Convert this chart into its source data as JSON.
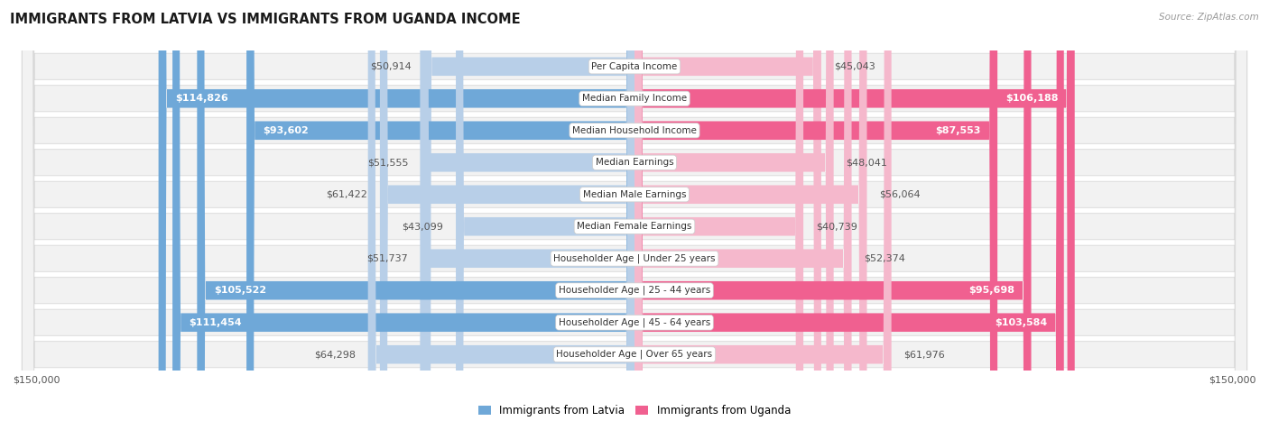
{
  "title": "IMMIGRANTS FROM LATVIA VS IMMIGRANTS FROM UGANDA INCOME",
  "source": "Source: ZipAtlas.com",
  "categories": [
    "Per Capita Income",
    "Median Family Income",
    "Median Household Income",
    "Median Earnings",
    "Median Male Earnings",
    "Median Female Earnings",
    "Householder Age | Under 25 years",
    "Householder Age | 25 - 44 years",
    "Householder Age | 45 - 64 years",
    "Householder Age | Over 65 years"
  ],
  "latvia_values": [
    50914,
    114826,
    93602,
    51555,
    61422,
    43099,
    51737,
    105522,
    111454,
    64298
  ],
  "uganda_values": [
    45043,
    106188,
    87553,
    48041,
    56064,
    40739,
    52374,
    95698,
    103584,
    61976
  ],
  "max_value": 150000,
  "latvia_color_light": "#b8cfe8",
  "latvia_color_dark": "#6fa8d8",
  "uganda_color_light": "#f5b8cc",
  "uganda_color_dark": "#f06090",
  "label_threshold": 75000,
  "background_color": "#ffffff",
  "row_bg_odd": "#f7f7f7",
  "row_bg_even": "#efefef",
  "legend_latvia": "Immigrants from Latvia",
  "legend_uganda": "Immigrants from Uganda"
}
